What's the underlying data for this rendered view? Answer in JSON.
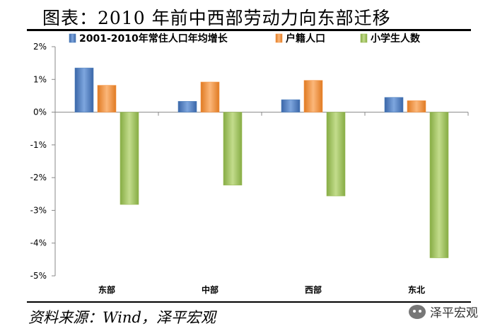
{
  "title": "图表：2010 年前中西部劳动力向东部迁移",
  "source": "资料来源：Wind，泽平宏观",
  "watermark": {
    "text": "泽平宏观",
    "icon": "wechat-icon"
  },
  "chart_data": {
    "type": "bar",
    "categories": [
      "东部",
      "中部",
      "西部",
      "东北"
    ],
    "series": [
      {
        "name": "2001-2010年常住人口年均增长",
        "values": [
          1.35,
          0.33,
          0.38,
          0.45
        ],
        "color": "#4F81BD"
      },
      {
        "name": "户籍人口",
        "values": [
          0.82,
          0.92,
          0.97,
          0.35
        ],
        "color": "#F79646"
      },
      {
        "name": "小学生人数",
        "values": [
          -2.82,
          -2.23,
          -2.56,
          -4.45
        ],
        "color": "#9BBB59"
      }
    ],
    "ylim": [
      -5,
      2
    ],
    "yticks": [
      "-5%",
      "-4%",
      "-3%",
      "-2%",
      "-1%",
      "0%",
      "1%",
      "2%"
    ],
    "y_unit": "%",
    "legend_position": "top",
    "grid": false
  }
}
